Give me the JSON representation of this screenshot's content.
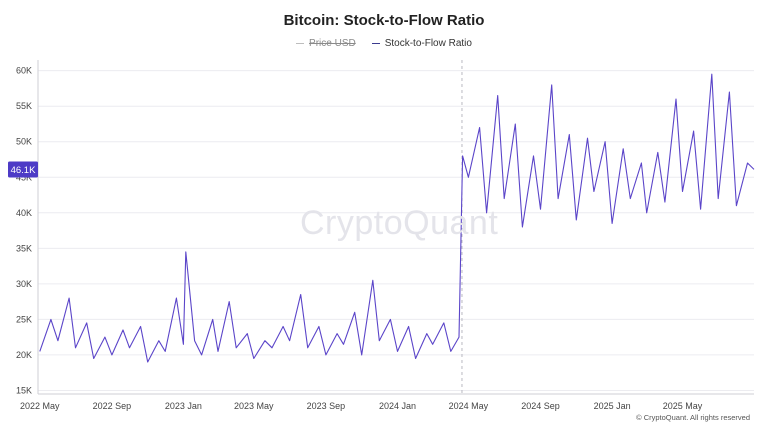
{
  "chart_data": {
    "type": "line",
    "title": "Bitcoin: Stock-to-Flow Ratio",
    "xlabel": "",
    "ylabel": "",
    "y_ticks": [
      {
        "value": 15000,
        "label": "15K"
      },
      {
        "value": 20000,
        "label": "20K"
      },
      {
        "value": 25000,
        "label": "25K"
      },
      {
        "value": 30000,
        "label": "30K"
      },
      {
        "value": 35000,
        "label": "35K"
      },
      {
        "value": 40000,
        "label": "40K"
      },
      {
        "value": 45000,
        "label": "45K"
      },
      {
        "value": 50000,
        "label": "50K"
      },
      {
        "value": 55000,
        "label": "55K"
      },
      {
        "value": 60000,
        "label": "60K"
      }
    ],
    "ylim": [
      14500,
      61500
    ],
    "x_ticks": [
      "2022 May",
      "2022 Sep",
      "2023 Jan",
      "2023 May",
      "2023 Sep",
      "2024 Jan",
      "2024 May",
      "2024 Sep",
      "2025 Jan",
      "2025 May"
    ],
    "x_range": [
      "2022-04-28",
      "2025-08-31"
    ],
    "marker_date": "2024-04-20",
    "current_value_label": "46.1K",
    "current_value": 46100,
    "grid": true,
    "legend_position": "top-center",
    "series": [
      {
        "name": "Price USD",
        "color": "#9a9a9a",
        "hidden": true,
        "points": []
      },
      {
        "name": "Stock-to-Flow Ratio",
        "color": "#5b45c9",
        "points": [
          [
            "2022-05-01",
            20500
          ],
          [
            "2022-05-20",
            25000
          ],
          [
            "2022-06-01",
            22000
          ],
          [
            "2022-06-20",
            28000
          ],
          [
            "2022-07-01",
            21000
          ],
          [
            "2022-07-20",
            24500
          ],
          [
            "2022-08-01",
            19500
          ],
          [
            "2022-08-20",
            22500
          ],
          [
            "2022-09-01",
            20000
          ],
          [
            "2022-09-20",
            23500
          ],
          [
            "2022-10-01",
            21000
          ],
          [
            "2022-10-20",
            24000
          ],
          [
            "2022-11-01",
            19000
          ],
          [
            "2022-11-20",
            22000
          ],
          [
            "2022-12-01",
            20500
          ],
          [
            "2022-12-20",
            28000
          ],
          [
            "2023-01-01",
            21500
          ],
          [
            "2023-01-05",
            34500
          ],
          [
            "2023-01-20",
            22000
          ],
          [
            "2023-02-01",
            20000
          ],
          [
            "2023-02-20",
            25000
          ],
          [
            "2023-03-01",
            20500
          ],
          [
            "2023-03-20",
            27500
          ],
          [
            "2023-04-01",
            21000
          ],
          [
            "2023-04-20",
            23000
          ],
          [
            "2023-05-01",
            19500
          ],
          [
            "2023-05-20",
            22000
          ],
          [
            "2023-06-01",
            21000
          ],
          [
            "2023-06-20",
            24000
          ],
          [
            "2023-07-01",
            22000
          ],
          [
            "2023-07-20",
            28500
          ],
          [
            "2023-08-01",
            21000
          ],
          [
            "2023-08-20",
            24000
          ],
          [
            "2023-09-01",
            20000
          ],
          [
            "2023-09-20",
            23000
          ],
          [
            "2023-10-01",
            21500
          ],
          [
            "2023-10-20",
            26000
          ],
          [
            "2023-11-01",
            20000
          ],
          [
            "2023-11-20",
            30500
          ],
          [
            "2023-12-01",
            22000
          ],
          [
            "2023-12-20",
            25000
          ],
          [
            "2024-01-01",
            20500
          ],
          [
            "2024-01-20",
            24000
          ],
          [
            "2024-02-01",
            19500
          ],
          [
            "2024-02-20",
            23000
          ],
          [
            "2024-03-01",
            21500
          ],
          [
            "2024-03-20",
            24500
          ],
          [
            "2024-04-01",
            20500
          ],
          [
            "2024-04-15",
            22500
          ],
          [
            "2024-04-21",
            48000
          ],
          [
            "2024-05-01",
            45000
          ],
          [
            "2024-05-20",
            52000
          ],
          [
            "2024-06-01",
            40000
          ],
          [
            "2024-06-20",
            56500
          ],
          [
            "2024-07-01",
            42000
          ],
          [
            "2024-07-20",
            52500
          ],
          [
            "2024-08-01",
            38000
          ],
          [
            "2024-08-20",
            48000
          ],
          [
            "2024-09-01",
            40500
          ],
          [
            "2024-09-20",
            58000
          ],
          [
            "2024-10-01",
            42000
          ],
          [
            "2024-10-20",
            51000
          ],
          [
            "2024-11-01",
            39000
          ],
          [
            "2024-11-20",
            50500
          ],
          [
            "2024-12-01",
            43000
          ],
          [
            "2024-12-20",
            50000
          ],
          [
            "2025-01-01",
            38500
          ],
          [
            "2025-01-20",
            49000
          ],
          [
            "2025-02-01",
            42000
          ],
          [
            "2025-02-20",
            47000
          ],
          [
            "2025-03-01",
            40000
          ],
          [
            "2025-03-20",
            48500
          ],
          [
            "2025-04-01",
            41500
          ],
          [
            "2025-04-20",
            56000
          ],
          [
            "2025-05-01",
            43000
          ],
          [
            "2025-05-20",
            51500
          ],
          [
            "2025-06-01",
            40500
          ],
          [
            "2025-06-20",
            59500
          ],
          [
            "2025-07-01",
            42000
          ],
          [
            "2025-07-20",
            57000
          ],
          [
            "2025-08-01",
            41000
          ],
          [
            "2025-08-20",
            47000
          ],
          [
            "2025-08-31",
            46100
          ]
        ]
      }
    ]
  },
  "watermark": "CryptoQuant",
  "copyright": "© CryptoQuant. All rights reserved"
}
